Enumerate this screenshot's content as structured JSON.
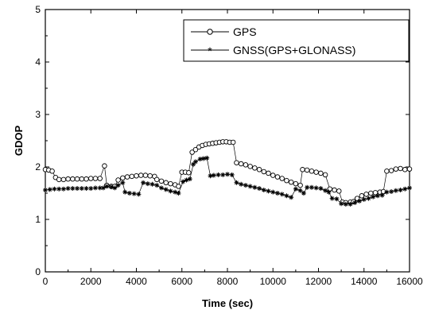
{
  "chart_data": {
    "type": "scatter",
    "title": "",
    "xlabel": "Time (sec)",
    "ylabel": "GDOP",
    "xlim": [
      0,
      16000
    ],
    "ylim": [
      0,
      5
    ],
    "xticks": [
      "0",
      "2000",
      "4000",
      "6000",
      "8000",
      "10000",
      "12000",
      "14000",
      "16000"
    ],
    "yticks": [
      "0",
      "1",
      "2",
      "3",
      "4",
      "5"
    ],
    "grid": false,
    "legend_position": "top-right",
    "series": [
      {
        "name": "GPS",
        "marker": "open-circle",
        "color": "#000000",
        "points": [
          [
            0,
            1.95
          ],
          [
            150,
            1.94
          ],
          [
            300,
            1.92
          ],
          [
            450,
            1.8
          ],
          [
            600,
            1.76
          ],
          [
            800,
            1.76
          ],
          [
            1000,
            1.77
          ],
          [
            1200,
            1.77
          ],
          [
            1400,
            1.77
          ],
          [
            1600,
            1.77
          ],
          [
            1800,
            1.77
          ],
          [
            2000,
            1.78
          ],
          [
            2200,
            1.78
          ],
          [
            2400,
            1.78
          ],
          [
            2600,
            2.02
          ],
          [
            2700,
            1.65
          ],
          [
            2900,
            1.63
          ],
          [
            3050,
            1.63
          ],
          [
            3200,
            1.75
          ],
          [
            3400,
            1.79
          ],
          [
            3600,
            1.81
          ],
          [
            3800,
            1.82
          ],
          [
            4000,
            1.83
          ],
          [
            4200,
            1.84
          ],
          [
            4400,
            1.84
          ],
          [
            4600,
            1.83
          ],
          [
            4800,
            1.82
          ],
          [
            4900,
            1.76
          ],
          [
            5100,
            1.73
          ],
          [
            5300,
            1.7
          ],
          [
            5500,
            1.68
          ],
          [
            5700,
            1.66
          ],
          [
            5850,
            1.63
          ],
          [
            6000,
            1.9
          ],
          [
            6150,
            1.9
          ],
          [
            6300,
            1.89
          ],
          [
            6450,
            2.28
          ],
          [
            6600,
            2.33
          ],
          [
            6750,
            2.38
          ],
          [
            6900,
            2.41
          ],
          [
            7050,
            2.43
          ],
          [
            7200,
            2.44
          ],
          [
            7350,
            2.45
          ],
          [
            7500,
            2.46
          ],
          [
            7650,
            2.47
          ],
          [
            7800,
            2.48
          ],
          [
            7950,
            2.48
          ],
          [
            8100,
            2.47
          ],
          [
            8250,
            2.47
          ],
          [
            8400,
            2.08
          ],
          [
            8600,
            2.06
          ],
          [
            8800,
            2.04
          ],
          [
            9000,
            2.01
          ],
          [
            9200,
            1.98
          ],
          [
            9400,
            1.95
          ],
          [
            9600,
            1.91
          ],
          [
            9800,
            1.88
          ],
          [
            10000,
            1.84
          ],
          [
            10200,
            1.81
          ],
          [
            10400,
            1.78
          ],
          [
            10600,
            1.74
          ],
          [
            10800,
            1.71
          ],
          [
            11000,
            1.68
          ],
          [
            11200,
            1.65
          ],
          [
            11300,
            1.95
          ],
          [
            11500,
            1.94
          ],
          [
            11700,
            1.92
          ],
          [
            11900,
            1.9
          ],
          [
            12100,
            1.88
          ],
          [
            12300,
            1.85
          ],
          [
            12500,
            1.58
          ],
          [
            12700,
            1.56
          ],
          [
            12900,
            1.54
          ],
          [
            13050,
            1.33
          ],
          [
            13200,
            1.32
          ],
          [
            13400,
            1.33
          ],
          [
            13550,
            1.34
          ],
          [
            13700,
            1.4
          ],
          [
            13900,
            1.45
          ],
          [
            14100,
            1.48
          ],
          [
            14300,
            1.5
          ],
          [
            14500,
            1.51
          ],
          [
            14700,
            1.52
          ],
          [
            14850,
            1.53
          ],
          [
            15000,
            1.92
          ],
          [
            15200,
            1.93
          ],
          [
            15400,
            1.96
          ],
          [
            15600,
            1.97
          ],
          [
            15800,
            1.95
          ],
          [
            16000,
            1.96
          ]
        ]
      },
      {
        "name": "GNSS(GPS+GLONASS)",
        "marker": "asterisk",
        "color": "#000000",
        "points": [
          [
            0,
            1.56
          ],
          [
            200,
            1.57
          ],
          [
            400,
            1.58
          ],
          [
            600,
            1.58
          ],
          [
            800,
            1.58
          ],
          [
            1000,
            1.59
          ],
          [
            1200,
            1.59
          ],
          [
            1400,
            1.59
          ],
          [
            1600,
            1.59
          ],
          [
            1800,
            1.59
          ],
          [
            2000,
            1.59
          ],
          [
            2200,
            1.6
          ],
          [
            2400,
            1.6
          ],
          [
            2550,
            1.6
          ],
          [
            2700,
            1.63
          ],
          [
            2900,
            1.62
          ],
          [
            3050,
            1.6
          ],
          [
            3200,
            1.65
          ],
          [
            3400,
            1.7
          ],
          [
            3500,
            1.52
          ],
          [
            3700,
            1.5
          ],
          [
            3900,
            1.49
          ],
          [
            4100,
            1.48
          ],
          [
            4300,
            1.7
          ],
          [
            4500,
            1.68
          ],
          [
            4700,
            1.67
          ],
          [
            4900,
            1.65
          ],
          [
            5100,
            1.6
          ],
          [
            5300,
            1.57
          ],
          [
            5500,
            1.54
          ],
          [
            5700,
            1.52
          ],
          [
            5850,
            1.5
          ],
          [
            6050,
            1.72
          ],
          [
            6200,
            1.75
          ],
          [
            6350,
            1.77
          ],
          [
            6500,
            2.05
          ],
          [
            6600,
            2.1
          ],
          [
            6800,
            2.15
          ],
          [
            6950,
            2.16
          ],
          [
            7100,
            2.17
          ],
          [
            7250,
            1.83
          ],
          [
            7400,
            1.84
          ],
          [
            7600,
            1.85
          ],
          [
            7800,
            1.85
          ],
          [
            8000,
            1.86
          ],
          [
            8200,
            1.85
          ],
          [
            8400,
            1.7
          ],
          [
            8600,
            1.67
          ],
          [
            8800,
            1.65
          ],
          [
            9000,
            1.63
          ],
          [
            9200,
            1.61
          ],
          [
            9400,
            1.59
          ],
          [
            9600,
            1.56
          ],
          [
            9800,
            1.54
          ],
          [
            10000,
            1.52
          ],
          [
            10200,
            1.5
          ],
          [
            10400,
            1.48
          ],
          [
            10600,
            1.45
          ],
          [
            10800,
            1.42
          ],
          [
            11000,
            1.58
          ],
          [
            11200,
            1.55
          ],
          [
            11350,
            1.5
          ],
          [
            11500,
            1.61
          ],
          [
            11700,
            1.61
          ],
          [
            11900,
            1.6
          ],
          [
            12100,
            1.59
          ],
          [
            12300,
            1.55
          ],
          [
            12450,
            1.52
          ],
          [
            12600,
            1.4
          ],
          [
            12800,
            1.39
          ],
          [
            13000,
            1.3
          ],
          [
            13200,
            1.29
          ],
          [
            13400,
            1.29
          ],
          [
            13600,
            1.32
          ],
          [
            13800,
            1.35
          ],
          [
            14000,
            1.38
          ],
          [
            14200,
            1.4
          ],
          [
            14400,
            1.43
          ],
          [
            14600,
            1.45
          ],
          [
            14800,
            1.46
          ],
          [
            15000,
            1.52
          ],
          [
            15200,
            1.53
          ],
          [
            15400,
            1.55
          ],
          [
            15600,
            1.56
          ],
          [
            15800,
            1.58
          ],
          [
            16000,
            1.6
          ]
        ]
      }
    ]
  }
}
